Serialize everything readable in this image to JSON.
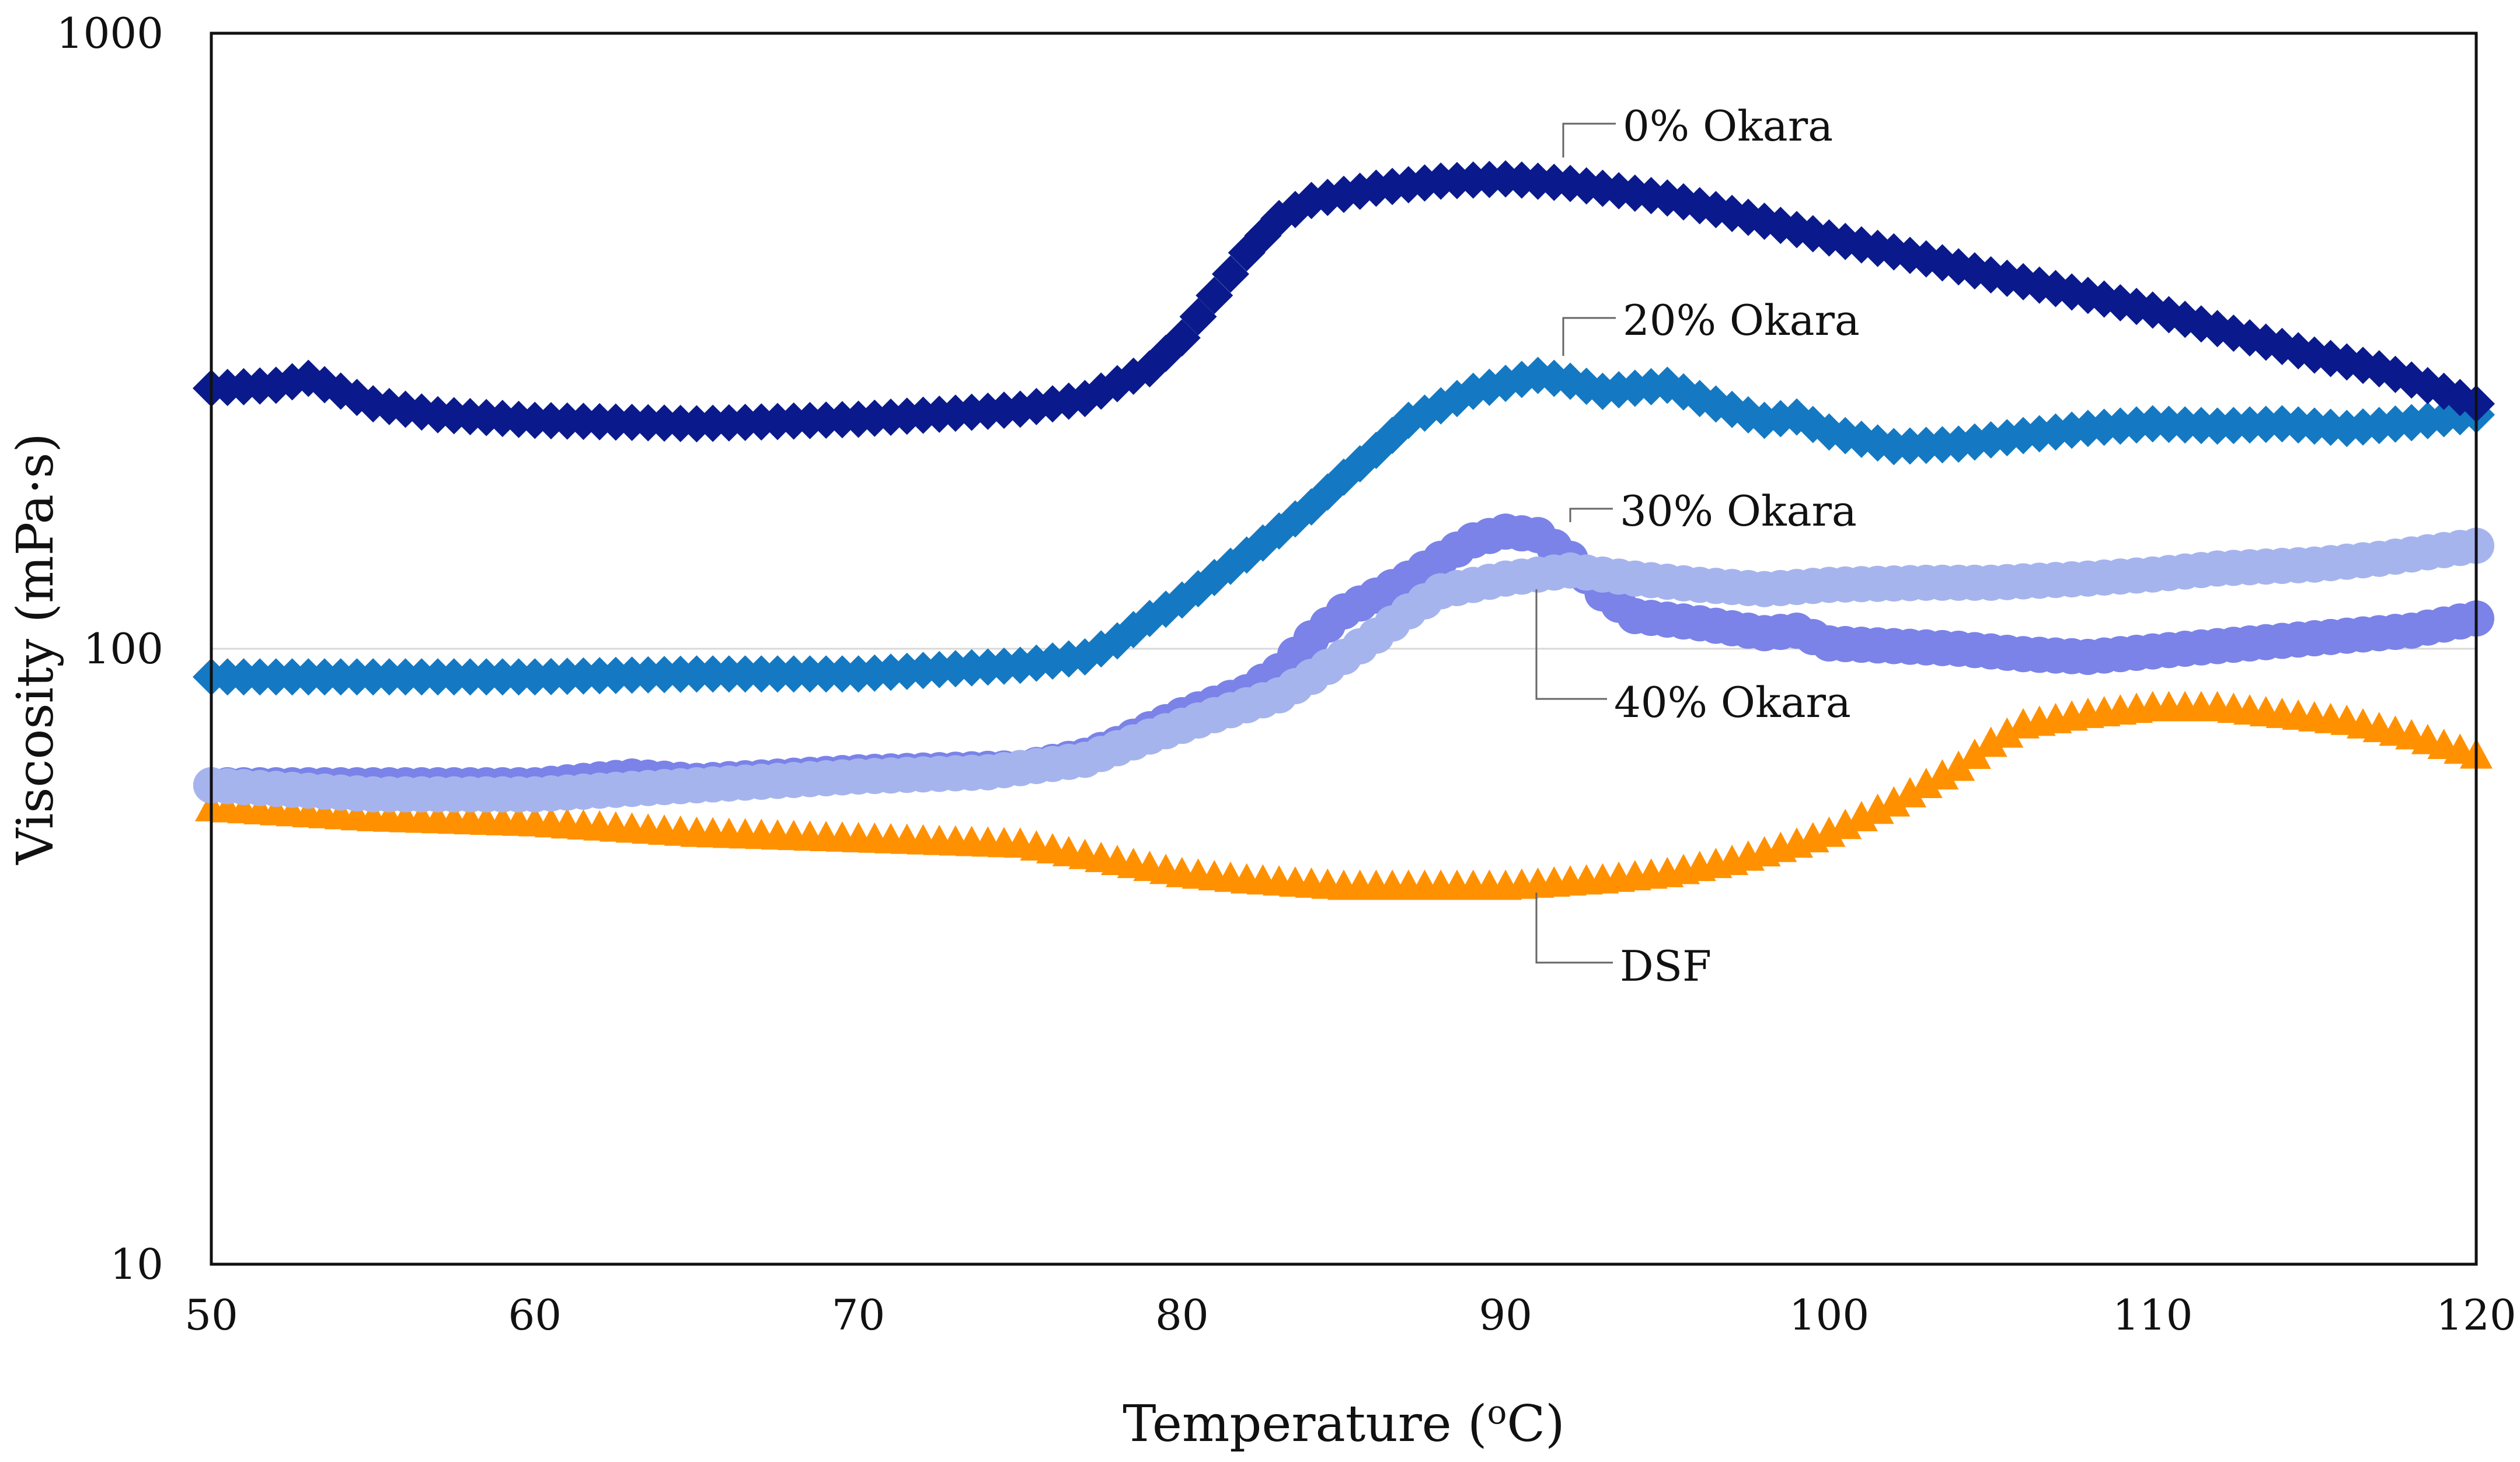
{
  "chart_data": {
    "type": "scatter",
    "title": "",
    "xlabel_main": "Temperature (",
    "xlabel_sup": "o",
    "xlabel_tail": "C)",
    "ylabel": "Viscosity (mPa·s)",
    "xlim": [
      50,
      120
    ],
    "ylim": [
      10,
      1000
    ],
    "yscale": "log",
    "x_ticks": [
      "50",
      "60",
      "70",
      "80",
      "90",
      "100",
      "110",
      "120"
    ],
    "y_ticks": [
      "10",
      "100",
      "1000"
    ],
    "grid": "horizontal at 100",
    "series": [
      {
        "name": "0% Okara",
        "marker": "diamond",
        "color": "#0a1a8c",
        "points": [
          [
            50,
            265
          ],
          [
            52,
            268
          ],
          [
            53,
            275
          ],
          [
            55,
            250
          ],
          [
            57,
            240
          ],
          [
            60,
            235
          ],
          [
            65,
            232
          ],
          [
            70,
            236
          ],
          [
            75,
            245
          ],
          [
            77,
            255
          ],
          [
            79,
            285
          ],
          [
            80,
            320
          ],
          [
            81,
            375
          ],
          [
            82,
            440
          ],
          [
            83,
            500
          ],
          [
            84,
            535
          ],
          [
            86,
            560
          ],
          [
            88,
            575
          ],
          [
            90,
            580
          ],
          [
            92,
            570
          ],
          [
            95,
            540
          ],
          [
            98,
            495
          ],
          [
            100,
            465
          ],
          [
            103,
            430
          ],
          [
            105,
            405
          ],
          [
            108,
            375
          ],
          [
            110,
            355
          ],
          [
            113,
            320
          ],
          [
            115,
            300
          ],
          [
            117,
            285
          ],
          [
            119,
            262
          ],
          [
            120,
            250
          ]
        ]
      },
      {
        "name": "20% Okara",
        "marker": "diamond",
        "color": "#1479c2",
        "points": [
          [
            50,
            90
          ],
          [
            55,
            90
          ],
          [
            60,
            90
          ],
          [
            65,
            91
          ],
          [
            70,
            91
          ],
          [
            75,
            94
          ],
          [
            77,
            97
          ],
          [
            78,
            103
          ],
          [
            79,
            112
          ],
          [
            80,
            120
          ],
          [
            82,
            142
          ],
          [
            84,
            170
          ],
          [
            85,
            190
          ],
          [
            86,
            210
          ],
          [
            87,
            235
          ],
          [
            89,
            262
          ],
          [
            91,
            278
          ],
          [
            92,
            272
          ],
          [
            93,
            262
          ],
          [
            95,
            268
          ],
          [
            96,
            255
          ],
          [
            98,
            235
          ],
          [
            99,
            238
          ],
          [
            100,
            225
          ],
          [
            102,
            213
          ],
          [
            104,
            215
          ],
          [
            106,
            222
          ],
          [
            108,
            228
          ],
          [
            110,
            232
          ],
          [
            112,
            230
          ],
          [
            114,
            232
          ],
          [
            116,
            228
          ],
          [
            118,
            233
          ],
          [
            120,
            240
          ]
        ]
      },
      {
        "name": "30% Okara",
        "marker": "circle",
        "color": "#7b83e8",
        "points": [
          [
            50,
            60
          ],
          [
            55,
            60
          ],
          [
            60,
            60
          ],
          [
            63,
            62
          ],
          [
            65,
            61
          ],
          [
            70,
            63
          ],
          [
            75,
            64
          ],
          [
            77,
            67
          ],
          [
            78,
            70
          ],
          [
            79,
            74
          ],
          [
            80,
            78
          ],
          [
            82,
            85
          ],
          [
            83,
            92
          ],
          [
            84,
            104
          ],
          [
            85,
            115
          ],
          [
            86,
            122
          ],
          [
            87,
            130
          ],
          [
            88,
            140
          ],
          [
            89,
            150
          ],
          [
            90,
            155
          ],
          [
            91,
            153
          ],
          [
            92,
            140
          ],
          [
            93,
            123
          ],
          [
            94,
            113
          ],
          [
            96,
            110
          ],
          [
            98,
            106
          ],
          [
            99,
            107
          ],
          [
            100,
            102
          ],
          [
            102,
            101
          ],
          [
            104,
            100
          ],
          [
            106,
            98
          ],
          [
            108,
            97
          ],
          [
            110,
            99
          ],
          [
            112,
            101
          ],
          [
            114,
            103
          ],
          [
            116,
            105
          ],
          [
            118,
            107
          ],
          [
            120,
            112
          ]
        ]
      },
      {
        "name": "40% Okara",
        "marker": "circle",
        "color": "#a6b4ee",
        "points": [
          [
            50,
            60
          ],
          [
            55,
            58
          ],
          [
            60,
            58
          ],
          [
            65,
            60
          ],
          [
            70,
            62
          ],
          [
            74,
            63
          ],
          [
            77,
            66
          ],
          [
            79,
            72
          ],
          [
            81,
            78
          ],
          [
            83,
            84
          ],
          [
            84,
            90
          ],
          [
            85,
            97
          ],
          [
            86,
            105
          ],
          [
            87,
            115
          ],
          [
            88,
            124
          ],
          [
            90,
            130
          ],
          [
            92,
            134
          ],
          [
            94,
            130
          ],
          [
            96,
            127
          ],
          [
            98,
            125
          ],
          [
            100,
            127
          ],
          [
            103,
            128
          ],
          [
            105,
            128
          ],
          [
            108,
            130
          ],
          [
            110,
            132
          ],
          [
            112,
            135
          ],
          [
            115,
            137
          ],
          [
            117,
            140
          ],
          [
            120,
            147
          ]
        ]
      },
      {
        "name": "DSF",
        "marker": "triangle",
        "color": "#ff9100",
        "points": [
          [
            50,
            55
          ],
          [
            55,
            53
          ],
          [
            60,
            52
          ],
          [
            65,
            50
          ],
          [
            70,
            49
          ],
          [
            75,
            48
          ],
          [
            77,
            46
          ],
          [
            79,
            44
          ],
          [
            80,
            43
          ],
          [
            82,
            42
          ],
          [
            85,
            41
          ],
          [
            90,
            41
          ],
          [
            93,
            42
          ],
          [
            95,
            43
          ],
          [
            97,
            45
          ],
          [
            99,
            48
          ],
          [
            100,
            50
          ],
          [
            101,
            53
          ],
          [
            102,
            56
          ],
          [
            103,
            60
          ],
          [
            104,
            64
          ],
          [
            105,
            70
          ],
          [
            106,
            75
          ],
          [
            108,
            78
          ],
          [
            110,
            80
          ],
          [
            112,
            80
          ],
          [
            114,
            78
          ],
          [
            116,
            76
          ],
          [
            118,
            72
          ],
          [
            120,
            67
          ]
        ]
      }
    ],
    "annotations": [
      {
        "series": "0% Okara",
        "text": "0% Okara",
        "x": 91.8,
        "y": 580
      },
      {
        "series": "20% Okara",
        "text": "20% Okara",
        "x": 91.8,
        "y": 278
      },
      {
        "series": "30% Okara",
        "text": "30% Okara",
        "x": 92,
        "y": 148
      },
      {
        "series": "40% Okara",
        "text": "40% Okara",
        "x": 91,
        "y": 133
      },
      {
        "series": "DSF",
        "text": "DSF",
        "x": 91,
        "y": 41
      }
    ]
  }
}
